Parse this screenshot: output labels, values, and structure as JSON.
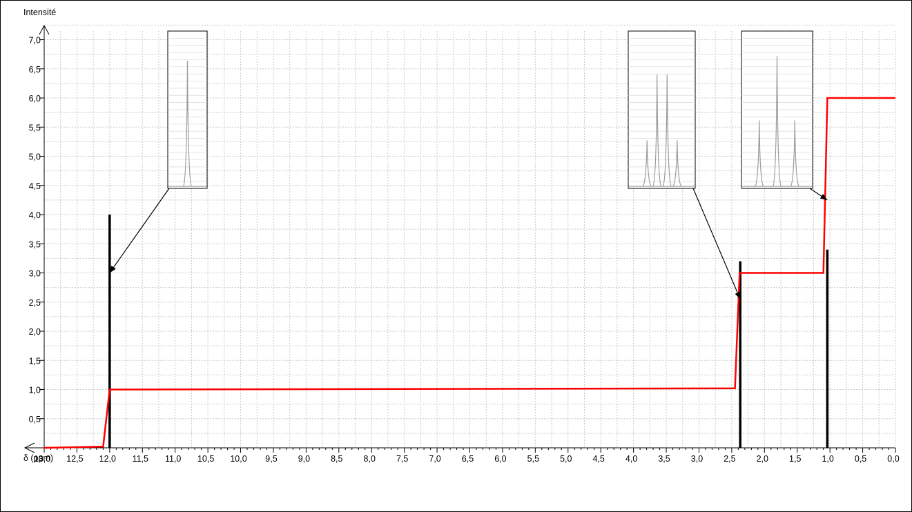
{
  "chart_data": {
    "type": "line",
    "title": "",
    "xlabel": "δ (ppm)",
    "ylabel": "Intensité",
    "x_reversed": true,
    "xlim": [
      0,
      13
    ],
    "ylim": [
      0,
      7.3
    ],
    "grid": true,
    "x_ticks": [
      13.0,
      12.5,
      12.0,
      11.5,
      11.0,
      10.5,
      10.0,
      9.5,
      9.0,
      8.5,
      8.0,
      7.5,
      7.0,
      6.5,
      6.0,
      5.5,
      5.0,
      4.5,
      4.0,
      3.5,
      3.0,
      2.5,
      2.0,
      1.5,
      1.0,
      0.5,
      0.0
    ],
    "x_tick_labels": [
      "13,0",
      "12,5",
      "12,0",
      "11,5",
      "11,0",
      "10,5",
      "10,0",
      "9,5",
      "9,0",
      "8,5",
      "8,0",
      "7,5",
      "7,0",
      "6,5",
      "6,0",
      "5,5",
      "5,0",
      "4,5",
      "4,0",
      "3,5",
      "3,0",
      "2,5",
      "2,0",
      "1,5",
      "1,0",
      "0,5",
      "0,0"
    ],
    "y_ticks": [
      0.5,
      1.0,
      1.5,
      2.0,
      2.5,
      3.0,
      3.5,
      4.0,
      4.5,
      5.0,
      5.5,
      6.0,
      6.5,
      7.0
    ],
    "y_tick_labels": [
      "0,5",
      "1,0",
      "1,5",
      "2,0",
      "2,5",
      "3,0",
      "3,5",
      "4,0",
      "4,5",
      "5,0",
      "5,5",
      "6,0",
      "6,5",
      "7,0"
    ],
    "peaks": [
      {
        "shift": 12.0,
        "height": 4.0,
        "multiplicity": "singlet"
      },
      {
        "shift": 2.37,
        "height": 3.2,
        "multiplicity": "quartet"
      },
      {
        "shift": 1.04,
        "height": 3.4,
        "multiplicity": "triplet"
      }
    ],
    "integration_curve": {
      "color": "#ff0000",
      "x": [
        13.0,
        12.1,
        12.0,
        11.9,
        2.45,
        2.38,
        2.3,
        1.1,
        1.04,
        0.98,
        0.0
      ],
      "y": [
        0.0,
        0.02,
        1.0,
        1.0,
        1.02,
        3.0,
        3.0,
        3.0,
        6.0,
        6.0,
        6.0
      ]
    },
    "insets": [
      {
        "peak_shift": 12.0,
        "lines": 1,
        "arrow_to": [
          12.0,
          3.0
        ]
      },
      {
        "peak_shift": 2.37,
        "lines": 4,
        "arrow_to": [
          2.37,
          2.55
        ]
      },
      {
        "peak_shift": 1.04,
        "lines": 3,
        "arrow_to": [
          1.04,
          4.25
        ]
      }
    ]
  }
}
